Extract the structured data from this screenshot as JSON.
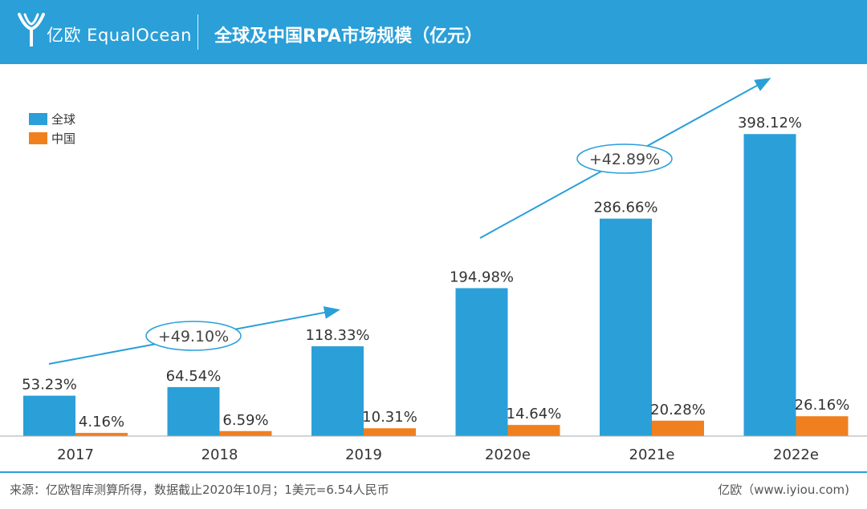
{
  "header": {
    "logo_text": "亿欧 EqualOcean",
    "title": "全球及中国RPA市场规模（亿元）"
  },
  "chart_data": {
    "type": "bar",
    "title": "全球及中国RPA市场规模（亿元）",
    "categories": [
      "2017",
      "2018",
      "2019",
      "2020e",
      "2021e",
      "2022e"
    ],
    "series": [
      {
        "name": "全球",
        "color": "#2a9fd8",
        "values": [
          53.23,
          64.54,
          118.33,
          194.98,
          286.66,
          398.12
        ],
        "labels": [
          "53.23%",
          "64.54%",
          "118.33%",
          "194.98%",
          "286.66%",
          "398.12%"
        ]
      },
      {
        "name": "中国",
        "color": "#f0801e",
        "values": [
          4.16,
          6.59,
          10.31,
          14.64,
          20.28,
          26.16
        ],
        "labels": [
          "4.16%",
          "6.59%",
          "10.31%",
          "14.64%",
          "20.28%",
          "26.16%"
        ]
      }
    ],
    "ylim": [
      0,
      410
    ],
    "grid": false,
    "legend_position": "top-left",
    "annotations": [
      {
        "text": "+49.10%",
        "from_category": "2017",
        "to_category": "2019"
      },
      {
        "text": "+42.89%",
        "from_category": "2020e",
        "to_category": "2022e"
      }
    ]
  },
  "footer": {
    "source": "来源：亿欧智库测算所得，数据截止2020年10月；1美元=6.54人民币",
    "site": "亿欧（www.iyiou.com)"
  }
}
